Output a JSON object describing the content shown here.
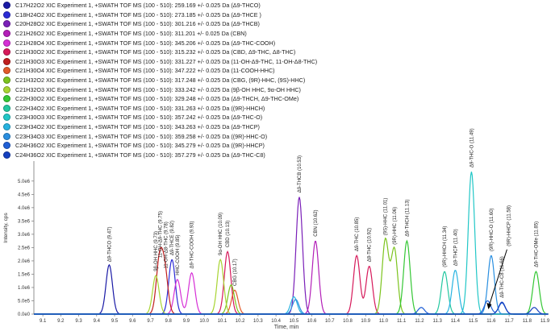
{
  "chart_data": {
    "type": "line",
    "xlabel": "Time, min",
    "ylabel": "Intensity, cps",
    "xlim": [
      9.05,
      11.92
    ],
    "ylim": [
      0,
      5600000.0
    ],
    "xticks": [
      "9.1",
      "9.2",
      "9.3",
      "9.4",
      "9.5",
      "9.6",
      "9.7",
      "9.8",
      "9.9",
      "10.0",
      "10.1",
      "10.2",
      "10.3",
      "10.4",
      "10.5",
      "10.6",
      "10.7",
      "10.8",
      "10.9",
      "11.0",
      "11.1",
      "11.2",
      "11.3",
      "11.4",
      "11.5",
      "11.6",
      "11.7",
      "11.8",
      "11.9"
    ],
    "yticks": [
      {
        "v": 0,
        "label": "0.0e0"
      },
      {
        "v": 500000.0,
        "label": "5.0e5"
      },
      {
        "v": 1000000.0,
        "label": "1.0e6"
      },
      {
        "v": 1500000.0,
        "label": "1.5e6"
      },
      {
        "v": 2000000.0,
        "label": "2.0e6"
      },
      {
        "v": 2500000.0,
        "label": "2.5e6"
      },
      {
        "v": 3000000.0,
        "label": "3.0e6"
      },
      {
        "v": 3500000.0,
        "label": "3.5e6"
      },
      {
        "v": 4000000.0,
        "label": "4.0e6"
      },
      {
        "v": 4500000.0,
        "label": "4.5e6"
      },
      {
        "v": 5000000.0,
        "label": "5.0e6"
      }
    ],
    "legend_position": "top-left",
    "series": [
      {
        "name": "C17H22O2 XIC Experiment 1, +SWATH TOF MS (100 - 510): 259.169 +/- 0.025 Da (Δ9-THCO)",
        "color": "#1a1aa6",
        "peaks": [
          [
            9.47,
            1850000.0
          ]
        ]
      },
      {
        "name": "C18H24O2 XIC Experiment 1, +SWATH TOF MS (100 - 510): 273.185 +/- 0.025 Da (Δ9-THCE )",
        "color": "#2b2bd6",
        "peaks": [
          [
            9.82,
            2050000.0
          ]
        ]
      },
      {
        "name": "C20H28O2 XIC Experiment 1, +SWATH TOF MS (100 - 510): 301.216 +/- 0.025 Da (Δ9-THCB)",
        "color": "#7a1fb8",
        "peaks": [
          [
            10.53,
            4400000.0
          ]
        ]
      },
      {
        "name": "C21H26O2 XIC Experiment 1, +SWATH TOF MS (100 - 510): 311.201 +/- 0.025 Da (CBN)",
        "color": "#b31fb8",
        "peaks": [
          [
            10.62,
            2750000.0
          ]
        ]
      },
      {
        "name": "C21H28O4 XIC Experiment 1, +SWATH TOF MS (100 - 510): 345.206 +/- 0.025 Da (Δ9-THC-COOH)",
        "color": "#d62fd6",
        "peaks": [
          [
            9.85,
            1300000.0
          ],
          [
            9.93,
            1550000.0
          ]
        ]
      },
      {
        "name": "C21H30O2 XIC Experiment 1, +SWATH TOF MS (100 - 510): 315.232 +/- 0.025 Da (CBD, Δ9-THC, Δ8-THC)",
        "color": "#d6195a",
        "peaks": [
          [
            10.13,
            2350000.0
          ],
          [
            10.85,
            2200000.0
          ],
          [
            10.92,
            1800000.0
          ]
        ]
      },
      {
        "name": "C21H30O3 XIC Experiment 1, +SWATH TOF MS (100 - 510): 331.227 +/- 0.025 Da (11-OH-Δ9-THC, 11-OH-Δ8-THC)",
        "color": "#c01e1e",
        "peaks": [
          [
            9.75,
            1950000.0
          ],
          [
            9.78,
            1550000.0
          ]
        ]
      },
      {
        "name": "C21H30O4 XIC Experiment 1, +SWATH TOF MS (100 - 510): 347.222 +/- 0.025 Da (11-COOH-HHC)",
        "color": "#e35a2a",
        "peaks": [
          [
            10.17,
            900000.0
          ]
        ]
      },
      {
        "name": "C21H32O2 XIC Experiment 1, +SWATH TOF MS (100 - 510): 317.248 +/- 0.025 Da (CBG, (9R)-HHC, (9S)-HHC)",
        "color": "#7cc41e",
        "peaks": [
          [
            10.15,
            1100000.0
          ],
          [
            11.01,
            2800000.0
          ],
          [
            11.06,
            2450000.0
          ]
        ]
      },
      {
        "name": "C21H32O3 XIC Experiment 1, +SWATH TOF MS (100 - 510): 333.242 +/- 0.025 Da (9β-OH HHC, 9α-OH HHC)",
        "color": "#a8d432",
        "peaks": [
          [
            9.73,
            1450000.0
          ],
          [
            10.09,
            2050000.0
          ]
        ]
      },
      {
        "name": "C22H30O2 XIC Experiment 1, +SWATH TOF MS (100 - 510): 329.248 +/- 0.025 Da (Δ9-THCH, Δ9-THC-OMe)",
        "color": "#34c734",
        "peaks": [
          [
            11.13,
            2750000.0
          ],
          [
            11.85,
            1600000.0
          ]
        ]
      },
      {
        "name": "C22H34O2 XIC Experiment 1, +SWATH TOF MS (100 - 510): 331.263 +/- 0.025 Da ((9R)-HHCH)",
        "color": "#23c7a0",
        "peaks": [
          [
            11.34,
            1600000.0
          ]
        ]
      },
      {
        "name": "C23H30O3 XIC Experiment 1, +SWATH TOF MS (100 - 510): 357.242 +/- 0.025 Da (Δ9-THC-O)",
        "color": "#22c7c7",
        "peaks": [
          [
            11.49,
            5350000.0
          ]
        ]
      },
      {
        "name": "C23H34O2 XIC Experiment 1, +SWATH TOF MS (100 - 510): 343.263 +/- 0.025 Da (Δ9-THCP)",
        "color": "#27b3e0",
        "peaks": [
          [
            11.4,
            1650000.0
          ],
          [
            10.5,
            650000.0
          ]
        ]
      },
      {
        "name": "C23H34O3 XIC Experiment 1, +SWATH TOF MS (100 - 510): 359.258 +/- 0.025 Da ((9R)-HHC-O)",
        "color": "#2a8fe0",
        "peaks": [
          [
            11.6,
            2200000.0
          ],
          [
            10.51,
            550000.0
          ]
        ]
      },
      {
        "name": "C24H36O2 XIC Experiment 1, +SWATH TOF MS (100 - 510): 345.279 +/- 0.025 Da ((9R)-HHCP)",
        "color": "#1f5fd6",
        "peaks": [
          [
            11.58,
            500000.0
          ],
          [
            11.66,
            420000.0
          ],
          [
            11.21,
            250000.0
          ]
        ]
      },
      {
        "name": "C24H36O2 XIC Experiment 1, +SWATH TOF MS (100 - 510): 357.279 +/- 0.025 Da (Δ9-THC-C8)",
        "color": "#1540c0",
        "peaks": [
          [
            11.66,
            450000.0
          ],
          [
            11.84,
            250000.0
          ]
        ]
      }
    ],
    "annotations": [
      {
        "x": 9.47,
        "y": 1900000.0,
        "text": "Δ9-THCO (9.47)"
      },
      {
        "x": 9.73,
        "y": 1550000.0,
        "text": "9β-OH HHC (9.73)"
      },
      {
        "x": 9.755,
        "y": 2050000.0,
        "text": "11-OH-Δ9-THC (9.75)"
      },
      {
        "x": 9.785,
        "y": 1650000.0,
        "text": "11-OH-Δ8-THC (9.78)"
      },
      {
        "x": 9.82,
        "y": 2150000.0,
        "text": "Δ9-THCE (9.82)"
      },
      {
        "x": 9.85,
        "y": 1400000.0,
        "text": "HHC-COOH (9.85)"
      },
      {
        "x": 9.93,
        "y": 1650000.0,
        "text": "Δ9-THC-COOH (9.93)"
      },
      {
        "x": 10.09,
        "y": 2150000.0,
        "text": "9α-OH HHC (10.09)"
      },
      {
        "x": 10.13,
        "y": 2450000.0,
        "text": "CBD (10.13)"
      },
      {
        "x": 10.17,
        "y": 1000000.0,
        "text": "CBG (10.17)"
      },
      {
        "x": 10.53,
        "y": 4500000.0,
        "text": "Δ9-THCB (10.53)"
      },
      {
        "x": 10.62,
        "y": 2850000.0,
        "text": "CBN (10.62)"
      },
      {
        "x": 10.85,
        "y": 2300000.0,
        "text": "Δ9-THC (10.85)"
      },
      {
        "x": 10.92,
        "y": 1900000.0,
        "text": "Δ8-THC (10.92)"
      },
      {
        "x": 11.01,
        "y": 2900000.0,
        "text": "(9S)-HHC (11.01)"
      },
      {
        "x": 11.06,
        "y": 2550000.0,
        "text": "(9R)-HHC (11.06)"
      },
      {
        "x": 11.13,
        "y": 2850000.0,
        "text": "Δ9-THCH (11.13)"
      },
      {
        "x": 11.34,
        "y": 1700000.0,
        "text": "(9R)-HHCH (11.34)"
      },
      {
        "x": 11.4,
        "y": 1750000.0,
        "text": "Δ9-THCP (11.40)"
      },
      {
        "x": 11.49,
        "y": 5450000.0,
        "text": "Δ9-THC-O (11.49)"
      },
      {
        "x": 11.6,
        "y": 2300000.0,
        "text": "(9R)-HHC-O (11.60)"
      },
      {
        "x": 11.66,
        "y": 550000.0,
        "text": "Δ9-THC-C8 (11.66)"
      },
      {
        "x": 11.85,
        "y": 1700000.0,
        "text": "Δ9-THC-OMe (11.85)"
      }
    ],
    "arrow_annotation": {
      "text": "(9R)-HHCP (11.58)",
      "x": 11.58,
      "y": 150000.0
    }
  }
}
